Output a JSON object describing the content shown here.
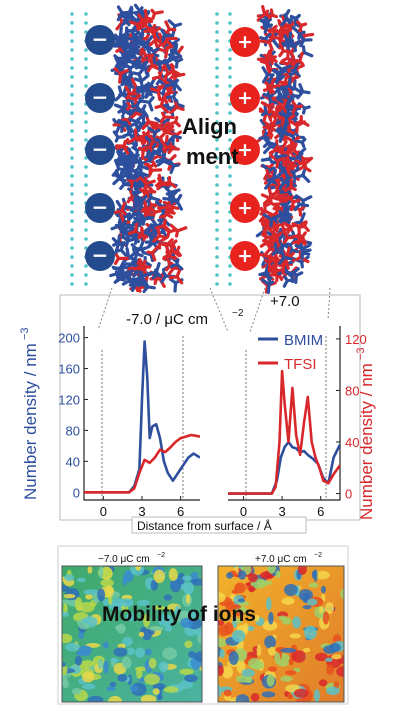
{
  "top": {
    "overlay_text_1": "Align",
    "overlay_text_2": "ment",
    "neg_sign": "−",
    "pos_sign": "+",
    "colors": {
      "cation": "#2d4f9e",
      "anion": "#d8282c",
      "surface_dots": "#4fc3c6"
    }
  },
  "middle": {
    "left_label": "-7.0 / μC cm",
    "left_label_sup": "−2",
    "right_label": "+7.0",
    "y_left_title": "Number density / nm",
    "y_left_sup": "−3",
    "y_right_title": "Number density / nm",
    "y_right_sup": "−3",
    "x_title": "Distance from surface / Å",
    "legend": [
      {
        "name": "BMIM",
        "color": "#2d4f9e"
      },
      {
        "name": "TFSI",
        "color": "#d8282c"
      }
    ],
    "y_left_ticks": [
      "0",
      "40",
      "80",
      "120",
      "160",
      "200"
    ],
    "y_right_ticks": [
      "0",
      "40",
      "80",
      "120"
    ],
    "x_ticks_left": [
      "0",
      "3",
      "6"
    ],
    "x_ticks_right": [
      "0",
      "3",
      "6"
    ]
  },
  "chart_data": [
    {
      "type": "line",
      "title": "-7.0 / μC cm−2",
      "xlabel": "Distance from surface / Å",
      "ylabel": "Number density / nm−3",
      "xlim": [
        -1.5,
        7.5
      ],
      "ylim": [
        -10,
        215
      ],
      "series": [
        {
          "name": "BMIM",
          "x": [
            -1.5,
            2.0,
            2.4,
            2.8,
            3.0,
            3.2,
            3.4,
            3.6,
            3.8,
            4.1,
            4.4,
            4.7,
            5.0,
            5.4,
            5.8,
            6.2,
            6.6,
            7.0,
            7.5
          ],
          "values": [
            0,
            0,
            8,
            30,
            120,
            195,
            150,
            70,
            85,
            88,
            70,
            40,
            25,
            15,
            25,
            35,
            45,
            50,
            45
          ]
        },
        {
          "name": "TFSI",
          "x": [
            -1.5,
            2.0,
            2.4,
            2.8,
            3.2,
            3.6,
            4.0,
            4.4,
            4.8,
            5.2,
            5.6,
            6.0,
            6.4,
            6.8,
            7.2,
            7.5
          ],
          "values": [
            0,
            0,
            5,
            25,
            42,
            38,
            45,
            55,
            52,
            58,
            65,
            70,
            72,
            74,
            73,
            72
          ]
        }
      ]
    },
    {
      "type": "line",
      "title": "+7.0",
      "xlabel": "Distance from surface / Å",
      "ylabel": "Number density / nm−3",
      "xlim": [
        -1.2,
        7.5
      ],
      "ylim": [
        -5,
        130
      ],
      "series": [
        {
          "name": "BMIM",
          "x": [
            -1.2,
            2.2,
            2.6,
            2.9,
            3.2,
            3.5,
            3.8,
            4.1,
            4.4,
            4.7,
            5.0,
            5.4,
            5.8,
            6.2,
            6.6,
            7.0,
            7.5
          ],
          "values": [
            0,
            0,
            10,
            28,
            36,
            40,
            36,
            35,
            32,
            33,
            30,
            27,
            23,
            12,
            8,
            28,
            38
          ]
        },
        {
          "name": "TFSI",
          "x": [
            -1.2,
            2.2,
            2.5,
            2.8,
            3.0,
            3.2,
            3.5,
            3.8,
            4.1,
            4.4,
            4.7,
            5.0,
            5.3,
            5.6,
            5.9,
            6.2,
            6.6,
            7.0,
            7.5
          ],
          "values": [
            0,
            0,
            5,
            40,
            95,
            70,
            40,
            82,
            45,
            30,
            55,
            75,
            40,
            28,
            20,
            10,
            8,
            15,
            22
          ]
        }
      ]
    }
  ],
  "bottom": {
    "left_title": "−7.0 μC cm",
    "left_sup": "−2",
    "right_title": "+7.0 μC cm",
    "right_sup": "−2",
    "overlay_text": "Mobility of ions"
  }
}
